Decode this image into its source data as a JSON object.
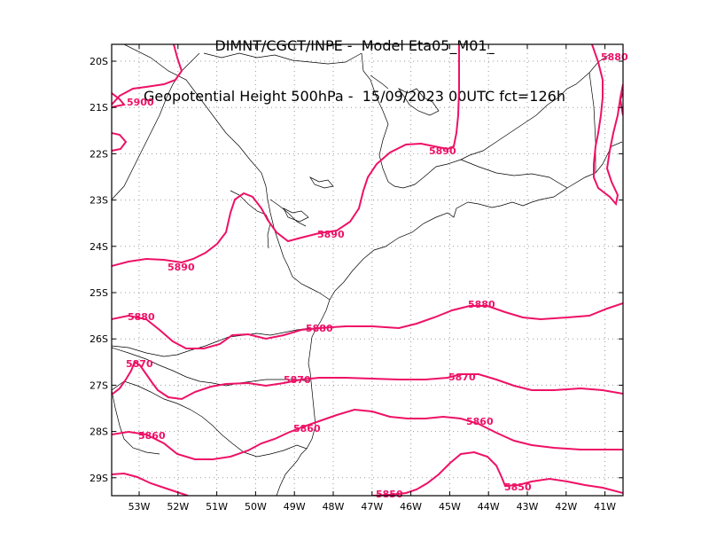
{
  "title": {
    "line1": "DIMNT/CGCT/INPE -  Model Eta05_M01_",
    "line2": "Geopotential Height 500hPa -  15/09/2023 00UTC fct=126h"
  },
  "axes": {
    "lat_labels": [
      "20S",
      "21S",
      "22S",
      "23S",
      "24S",
      "25S",
      "26S",
      "27S",
      "28S",
      "29S"
    ],
    "lon_labels": [
      "53W",
      "52W",
      "51W",
      "50W",
      "49W",
      "48W",
      "47W",
      "46W",
      "45W",
      "44W",
      "43W",
      "42W",
      "41W"
    ]
  },
  "colors": {
    "contour": "#ee1166",
    "coast": "#000000",
    "grid": "#999999"
  },
  "contours": [
    {
      "value": "5900",
      "label": "5900"
    },
    {
      "value": "5890",
      "label": "5890"
    },
    {
      "value": "5880",
      "label": "5880"
    },
    {
      "value": "5870",
      "label": "5870"
    },
    {
      "value": "5860",
      "label": "5860"
    },
    {
      "value": "5850",
      "label": "5850"
    }
  ]
}
